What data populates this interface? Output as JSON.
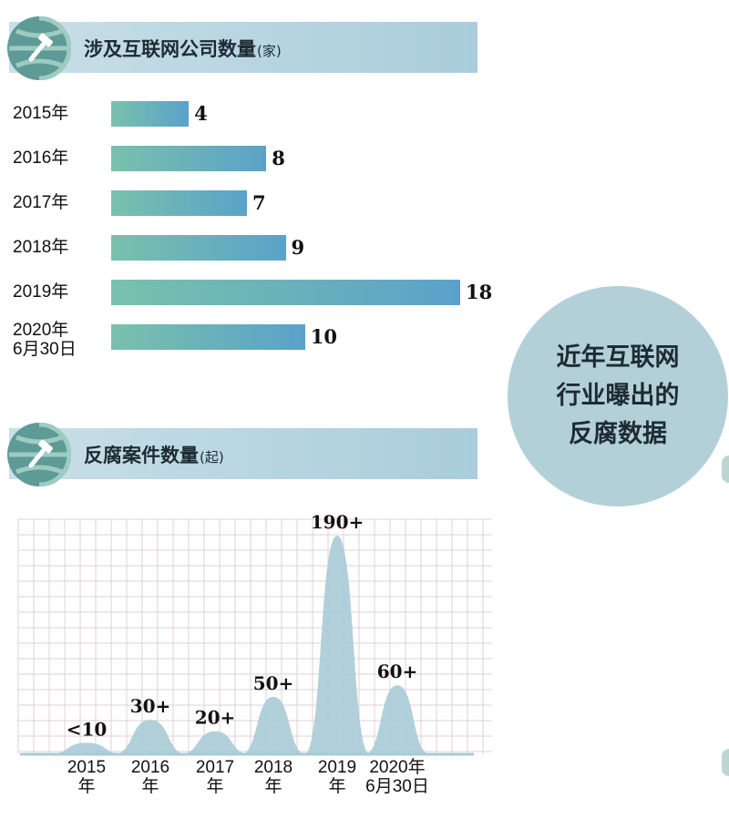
{
  "circle_title": [
    "近年互联网",
    "行业曝出的",
    "反腐数据"
  ],
  "colors": {
    "bar_start": "#79c1ac",
    "bar_end": "#5aa2c9",
    "area_fill": "#a9cbd6",
    "grid": "#e3cfd6",
    "header_band": "#b6d4df",
    "circle": "#b3d0d8"
  },
  "chart_data": [
    {
      "type": "bar",
      "orientation": "horizontal",
      "title": "涉及互联网公司数量",
      "unit": "(家)",
      "categories": [
        "2015年",
        "2016年",
        "2017年",
        "2018年",
        "2019年",
        "2020年6月30日"
      ],
      "category_lines": [
        [
          "2015年"
        ],
        [
          "2016年"
        ],
        [
          "2017年"
        ],
        [
          "2018年"
        ],
        [
          "2019年"
        ],
        [
          "2020年",
          "6月30日"
        ]
      ],
      "values": [
        4,
        8,
        7,
        9,
        18,
        10
      ],
      "value_labels": [
        "4",
        "8",
        "7",
        "9",
        "18",
        "10"
      ],
      "xlim": [
        0,
        18
      ]
    },
    {
      "type": "area",
      "title": "反腐案件数量",
      "unit": "(起)",
      "categories": [
        "2015年",
        "2016年",
        "2017年",
        "2018年",
        "2019年",
        "2020年6月30日"
      ],
      "category_lines": [
        [
          "2015",
          "年"
        ],
        [
          "2016",
          "年"
        ],
        [
          "2017",
          "年"
        ],
        [
          "2018",
          "年"
        ],
        [
          "2019",
          "年"
        ],
        [
          "2020年",
          "6月30日"
        ]
      ],
      "values": [
        10,
        30,
        20,
        50,
        190,
        60
      ],
      "value_labels": [
        "<10",
        "30+",
        "20+",
        "50+",
        "190+",
        "60+"
      ],
      "ylim": [
        0,
        190
      ],
      "grid": true
    }
  ]
}
